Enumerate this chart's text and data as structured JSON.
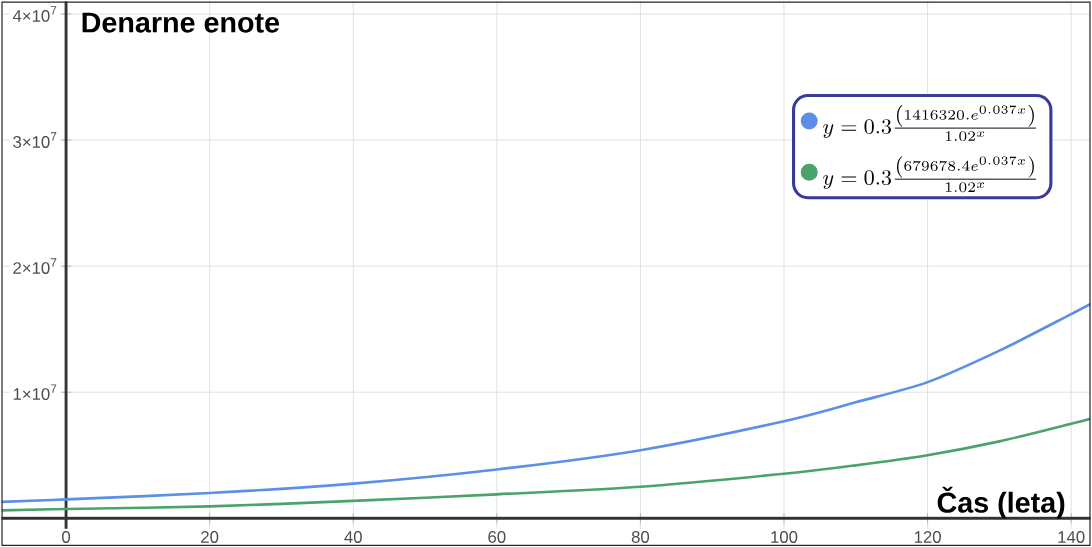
{
  "chart_data": {
    "type": "line",
    "xlabel": "Čas (leta)",
    "ylabel": "Denarne enote",
    "xlim": [
      -9,
      142.7
    ],
    "ylim": [
      -2200000,
      41000000
    ],
    "xticks": [
      0,
      20,
      40,
      60,
      80,
      100,
      120,
      140
    ],
    "yticks": [
      {
        "value": 10000000,
        "label": "1×10$^{7}$"
      },
      {
        "value": 20000000,
        "label": "2×10$^{7}$"
      },
      {
        "value": 30000000,
        "label": "3×10$^{7}$"
      },
      {
        "value": 40000000,
        "label": "4×10$^{7}$"
      }
    ],
    "grid": true,
    "legend": "top right",
    "x": [
      -9,
      0,
      20,
      40,
      60,
      80,
      100,
      110,
      120,
      130,
      140,
      142.7
    ],
    "series": [
      {
        "name": "y=0.3\\frac{\\left(1416320.e^{0.037x}\\right)}{1.02^{x}}",
        "color": "#5b8fe8",
        "values": [
          1300000,
          1500000,
          2000000,
          2750000,
          3870000,
          5400000,
          7700000,
          9200000,
          10800000,
          13300000,
          16200000,
          17000000
        ]
      },
      {
        "name": "y=0.3\\frac{\\left(679678.4e^{0.037x}\\right)}{1.02^{x}}",
        "color": "#4aa36b",
        "values": [
          630000,
          740000,
          940000,
          1380000,
          1900000,
          2500000,
          3530000,
          4200000,
          5000000,
          6100000,
          7500000,
          7900000
        ]
      }
    ]
  }
}
